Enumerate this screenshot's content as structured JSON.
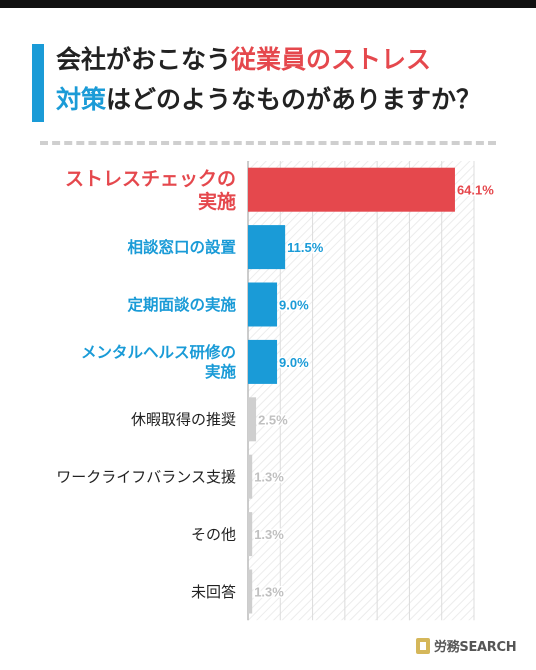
{
  "title": {
    "line1_prefix": "会社がおこなう",
    "line1_highlight": "従業員のストレス",
    "line2_highlight": "対策",
    "line2_suffix": "はどのようなものがありますか？"
  },
  "logo": {
    "icon": "book-icon",
    "brand_a": "労務",
    "brand_b": "SEARCH"
  },
  "colors": {
    "red": "#e5484d",
    "blue": "#1a9bd7",
    "gray": "#cfcfcf",
    "label_gray": "#222222",
    "value_gray": "#c0c0c0"
  },
  "chart_data": {
    "type": "bar",
    "orientation": "horizontal",
    "categories": [
      "ストレスチェックの\n実施",
      "相談窓口の設置",
      "定期面談の実施",
      "メンタルヘルス研修の\n実施",
      "休暇取得の推奨",
      "ワークライフバランス支援",
      "その他",
      "未回答"
    ],
    "values": [
      64.1,
      11.5,
      9.0,
      9.0,
      2.5,
      1.3,
      1.3,
      1.3
    ],
    "value_labels": [
      "64.1%",
      "11.5%",
      "9.0%",
      "9.0%",
      "2.5%",
      "1.3%",
      "1.3%",
      "1.3%"
    ],
    "bar_colors": [
      "red",
      "blue",
      "blue",
      "blue",
      "gray",
      "gray",
      "gray",
      "gray"
    ],
    "xlim": [
      0,
      70
    ],
    "xticks": [
      10,
      20,
      30,
      40,
      50,
      60,
      70
    ],
    "grid": true
  }
}
